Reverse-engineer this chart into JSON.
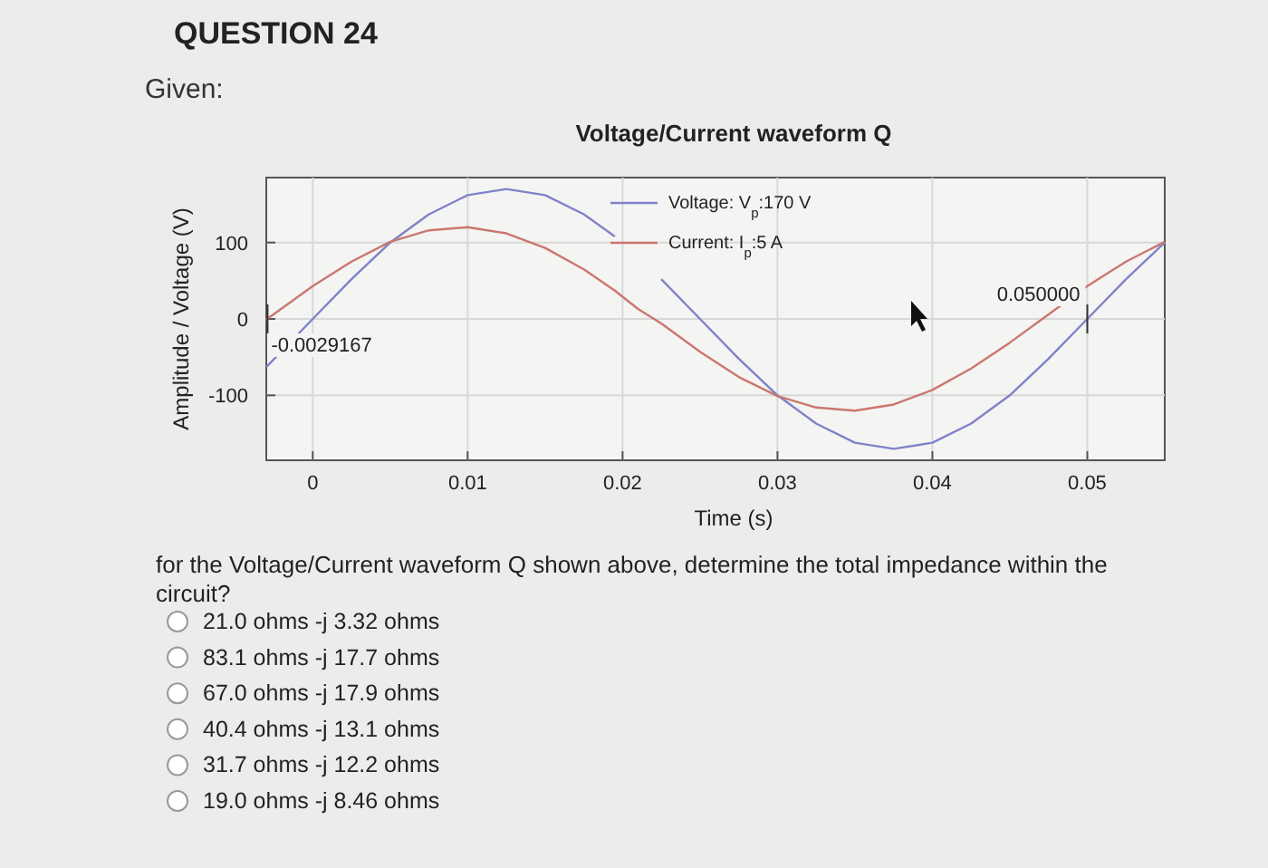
{
  "chart_data": {
    "type": "line",
    "title": "Voltage/Current waveform Q",
    "xlabel": "Time (s)",
    "ylabel": "Amplitude / Voltage (V)",
    "x": [
      -0.003,
      0,
      0.0025,
      0.005,
      0.0075,
      0.01,
      0.0125,
      0.015,
      0.0175,
      0.0195,
      0.021,
      0.0225,
      0.025,
      0.0275,
      0.03,
      0.0325,
      0.035,
      0.0375,
      0.04,
      0.0425,
      0.045,
      0.0475,
      0.05,
      0.0525,
      0.055
    ],
    "series": [
      {
        "name": "Voltage: V$_{p}$:170 V",
        "color": "#7f82c8",
        "values": [
          -63,
          0,
          52,
          100,
          137,
          162,
          170,
          162,
          137,
          108,
          null,
          52,
          0,
          -52,
          -100,
          -137,
          -162,
          -170,
          -162,
          -137,
          -100,
          -52,
          0,
          52,
          100
        ]
      },
      {
        "name": "Current: I$_{p}$:5 A",
        "color": "#c9776f",
        "values": [
          -1,
          43,
          75,
          101,
          116,
          120,
          112,
          93,
          65,
          37,
          13,
          -6,
          -43,
          -76,
          -101,
          -116,
          -120,
          -112,
          -93,
          -65,
          -31,
          6,
          43,
          75,
          101
        ]
      }
    ],
    "xlim": [
      -0.003,
      0.055
    ],
    "xticks": [
      0,
      0.01,
      0.02,
      0.03,
      0.04,
      0.05
    ],
    "ylim": [
      -185,
      185
    ],
    "yticks": [
      -100,
      0,
      100
    ],
    "grid": true,
    "legend": "top",
    "marker": "none",
    "line_style": "solid",
    "annotations": [
      "QUESTION 24",
      "Given:",
      "for the Voltage/Current waveform Q shown above, determine the total impedance within the circuit?",
      {
        "text": "-0.0029167",
        "x": -0.0029167,
        "y": 0
      },
      {
        "text": "0.050000",
        "x": 0.05,
        "y": 0
      },
      "21.0 ohms -j 3.32 ohms",
      "83.1 ohms -j 17.7 ohms",
      "67.0 ohms -j 17.9 ohms",
      "40.4 ohms -j 13.1 ohms",
      "31.7 ohms -j 12.2 ohms",
      "19.0 ohms -j 8.46 ohms"
    ]
  }
}
